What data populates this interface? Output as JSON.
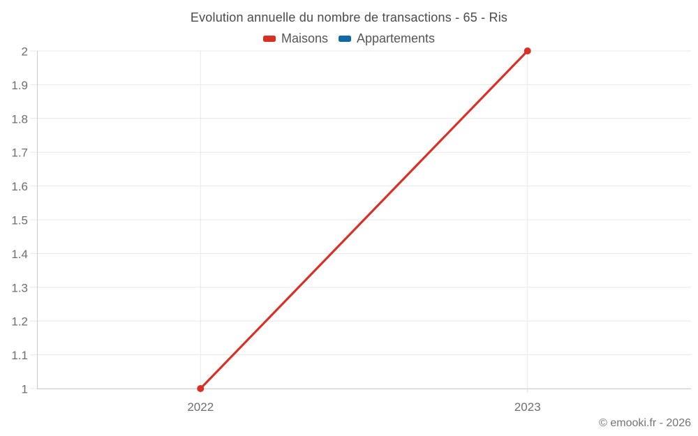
{
  "chart_data": {
    "type": "line",
    "title": "Evolution annuelle du nombre de transactions - 65 - Ris",
    "categories": [
      "2022",
      "2023"
    ],
    "series": [
      {
        "name": "Maisons",
        "color": "#d93026",
        "values": [
          1,
          2
        ]
      },
      {
        "name": "Appartements",
        "color": "#1069a5",
        "values": []
      }
    ],
    "xlabel": "",
    "ylabel": "",
    "ylim": [
      1,
      2
    ],
    "yticks": [
      "1",
      "1.1",
      "1.2",
      "1.3",
      "1.4",
      "1.5",
      "1.6",
      "1.7",
      "1.8",
      "1.9",
      "2"
    ],
    "grid": true,
    "legend_position": "top",
    "marker_radius": 5,
    "line_width": 3.2
  },
  "footer": "© emooki.fr - 2026",
  "colors": {
    "background": "#ffffff",
    "grid": "#e8e8e8",
    "axis": "#cccccc",
    "category_tick": "#dddddd",
    "tick_text": "#6e6e6e",
    "title_text": "#4a4a4a",
    "legend_text": "#565656",
    "footer_text": "#737373"
  }
}
